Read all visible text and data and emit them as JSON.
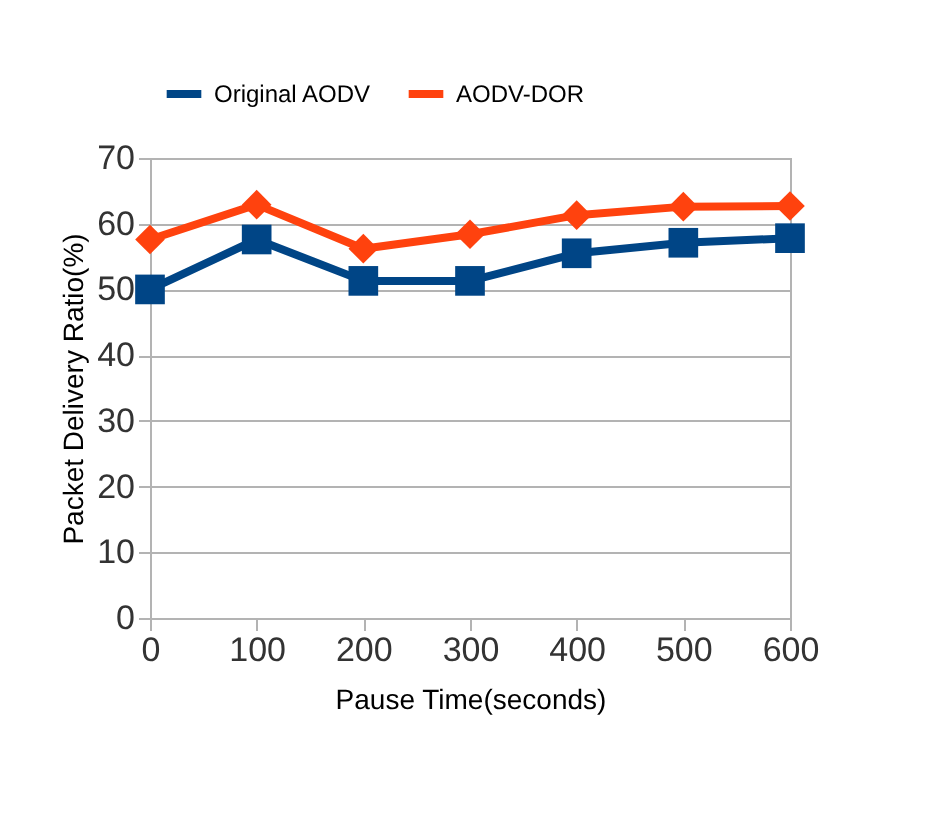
{
  "chart_data": {
    "type": "line",
    "xlabel": "Pause Time(seconds)",
    "ylabel": "Packet Delivery Ratio(%)",
    "x": [
      0,
      100,
      200,
      300,
      400,
      500,
      600
    ],
    "series": [
      {
        "name": "Original AODV",
        "color": "#004586",
        "marker": "square",
        "values": [
          50,
          57.6,
          51.3,
          51.3,
          55.5,
          57.1,
          57.8
        ]
      },
      {
        "name": "AODV-DOR",
        "color": "#ff420e",
        "marker": "diamond",
        "values": [
          57.6,
          62.9,
          56.2,
          58.4,
          61.3,
          62.6,
          62.7
        ]
      }
    ],
    "xlim": [
      0,
      600
    ],
    "xticks": [
      0,
      100,
      200,
      300,
      400,
      500,
      600
    ],
    "ylim": [
      0,
      70
    ],
    "yticks": [
      0,
      10,
      20,
      30,
      40,
      50,
      60,
      70
    ],
    "grid": "y",
    "legend": "top",
    "line_style": "solid"
  }
}
